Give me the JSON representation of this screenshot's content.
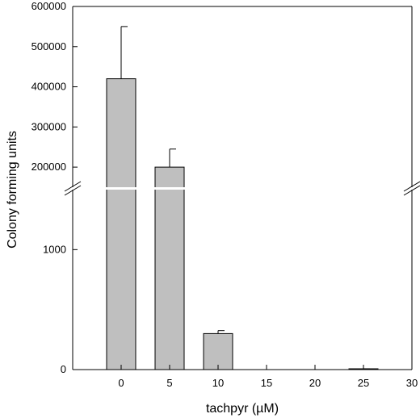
{
  "chart_data": {
    "type": "bar",
    "xlabel": "tachpyr (µM)",
    "ylabel": "Colony forming units",
    "x_ticks": [
      "0",
      "5",
      "10",
      "15",
      "20",
      "25",
      "30"
    ],
    "xlim": [
      -5,
      30
    ],
    "y_axis_broken": true,
    "y_lower_ticks": [
      "0",
      "1000"
    ],
    "y_lower_range": [
      0,
      1500
    ],
    "y_upper_ticks": [
      "200000",
      "300000",
      "400000",
      "500000",
      "600000"
    ],
    "y_upper_range": [
      150000,
      600000
    ],
    "categories": [
      "0",
      "5",
      "10",
      "15",
      "20",
      "25"
    ],
    "x": [
      0,
      5,
      10,
      15,
      20,
      25
    ],
    "values": [
      420000,
      200000,
      300,
      0,
      0,
      5
    ],
    "errors": [
      130000,
      45000,
      25,
      0,
      0,
      2
    ]
  }
}
